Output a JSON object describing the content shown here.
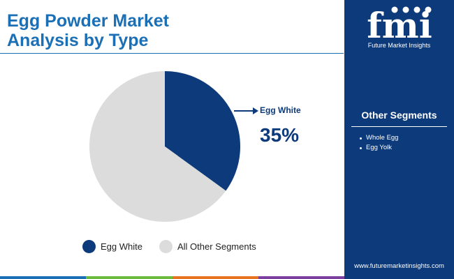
{
  "header": {
    "title_line1": "Egg Powder Market",
    "title_line2": "Analysis by Type"
  },
  "chart_data": {
    "type": "pie",
    "categories": [
      "Egg White",
      "All Other Segments"
    ],
    "values": [
      35,
      65
    ],
    "colors": [
      "#0d3a7a",
      "#dcdcdc"
    ],
    "callout": {
      "label": "Egg White",
      "value": "35%"
    },
    "legend": [
      "Egg White",
      "All Other Segments"
    ],
    "legend_position": "bottom"
  },
  "side_panel": {
    "logo_text": "fmi",
    "logo_caption": "Future Market Insights",
    "segments_heading": "Other Segments",
    "segments": [
      "Whole Egg",
      "Egg Yolk"
    ],
    "website": "www.futuremarketinsights.com",
    "background": "#0d3a7a"
  },
  "bottom_bar_colors": [
    "#1b6fb5",
    "#6cbb3c",
    "#e8731f",
    "#7b3fa0"
  ]
}
